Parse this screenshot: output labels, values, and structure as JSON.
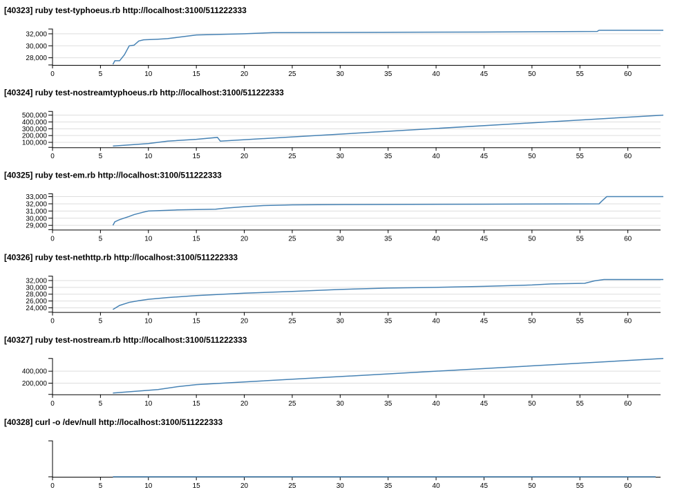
{
  "chart_data": [
    {
      "type": "line",
      "title": "[40323] ruby test-typhoeus.rb http://localhost:3100/511222333",
      "x": [
        6.3,
        6.5,
        7,
        7.5,
        8,
        8.5,
        9,
        9.5,
        11,
        12,
        13,
        14,
        15,
        20,
        23,
        45,
        56.8,
        57,
        63.7
      ],
      "series": [
        {
          "color": "#4682b4",
          "values": [
            26900,
            27500,
            27500,
            28500,
            30000,
            30100,
            30800,
            31000,
            31100,
            31200,
            31400,
            31600,
            31800,
            32000,
            32200,
            32300,
            32400,
            32600,
            32600
          ]
        }
      ],
      "xlim": [
        0,
        63.7
      ],
      "xticks": [
        0,
        5,
        10,
        15,
        20,
        25,
        30,
        35,
        40,
        45,
        50,
        55,
        60
      ],
      "ylim": [
        26800,
        32800
      ],
      "yticks": [
        {
          "value": 28000,
          "label": "28,000"
        },
        {
          "value": 30000,
          "label": "30,000"
        },
        {
          "value": 32000,
          "label": "32,000"
        }
      ],
      "grid": true
    },
    {
      "type": "line",
      "title": "[40324] ruby test-nostreamtyphoeus.rb http://localhost:3100/511222333",
      "x": [
        6.3,
        10,
        12,
        15,
        17.2,
        17.5,
        63.7
      ],
      "series": [
        {
          "color": "#4682b4",
          "values": [
            45000,
            82000,
            118000,
            145000,
            173000,
            118000,
            500000
          ]
        }
      ],
      "xlim": [
        0,
        63.7
      ],
      "xticks": [
        0,
        5,
        10,
        15,
        20,
        25,
        30,
        35,
        40,
        45,
        50,
        55,
        60
      ],
      "ylim": [
        27000,
        555000
      ],
      "yticks": [
        {
          "value": 100000,
          "label": "100,000"
        },
        {
          "value": 200000,
          "label": "200,000"
        },
        {
          "value": 300000,
          "label": "300,000"
        },
        {
          "value": 400000,
          "label": "400,000"
        },
        {
          "value": 500000,
          "label": "500,000"
        }
      ],
      "grid": true
    },
    {
      "type": "line",
      "title": "[40325] ruby test-em.rb http://localhost:3100/511222333",
      "x": [
        6.3,
        6.5,
        7,
        8,
        8.5,
        9.5,
        10,
        13,
        17,
        18,
        20,
        22,
        25,
        30.5,
        45,
        57,
        57.3,
        57.8,
        63.7
      ],
      "series": [
        {
          "color": "#4682b4",
          "values": [
            29000,
            29500,
            29800,
            30250,
            30500,
            30850,
            31000,
            31150,
            31250,
            31400,
            31600,
            31750,
            31850,
            31900,
            31950,
            32000,
            32400,
            33000,
            33000
          ]
        }
      ],
      "xlim": [
        0,
        63.7
      ],
      "xticks": [
        0,
        5,
        10,
        15,
        20,
        25,
        30,
        35,
        40,
        45,
        50,
        55,
        60
      ],
      "ylim": [
        28400,
        33400
      ],
      "yticks": [
        {
          "value": 29000,
          "label": "29,000"
        },
        {
          "value": 30000,
          "label": "30,000"
        },
        {
          "value": 31000,
          "label": "31,000"
        },
        {
          "value": 32000,
          "label": "32,000"
        },
        {
          "value": 33000,
          "label": "33,000"
        }
      ],
      "grid": true
    },
    {
      "type": "line",
      "title": "[40326] ruby test-nethttp.rb http://localhost:3100/511222333",
      "x": [
        6.3,
        7,
        8,
        9,
        10,
        12,
        15,
        20,
        25,
        30,
        35,
        40,
        45,
        50,
        52,
        55.5,
        56.5,
        57.5,
        63.7
      ],
      "series": [
        {
          "color": "#4682b4",
          "values": [
            23500,
            24700,
            25600,
            26100,
            26500,
            27000,
            27600,
            28300,
            28800,
            29400,
            29800,
            30000,
            30300,
            30700,
            31000,
            31200,
            31900,
            32300,
            32300
          ]
        }
      ],
      "xlim": [
        0,
        63.7
      ],
      "xticks": [
        0,
        5,
        10,
        15,
        20,
        25,
        30,
        35,
        40,
        45,
        50,
        55,
        60
      ],
      "ylim": [
        22750,
        33300
      ],
      "yticks": [
        {
          "value": 24000,
          "label": "24,000"
        },
        {
          "value": 26000,
          "label": "26,000"
        },
        {
          "value": 28000,
          "label": "28,000"
        },
        {
          "value": 30000,
          "label": "30,000"
        },
        {
          "value": 32000,
          "label": "32,000"
        }
      ],
      "grid": true
    },
    {
      "type": "line",
      "title": "[40327] ruby test-nostream.rb http://localhost:3100/511222333",
      "x": [
        6.3,
        11,
        13,
        15,
        63.7
      ],
      "series": [
        {
          "color": "#4682b4",
          "values": [
            35000,
            94000,
            141000,
            176000,
            612000
          ]
        }
      ],
      "xlim": [
        0,
        63.7
      ],
      "xticks": [
        0,
        5,
        10,
        15,
        20,
        25,
        30,
        35,
        40,
        45,
        50,
        55,
        60
      ],
      "ylim": [
        12000,
        612000
      ],
      "yticks": [
        {
          "value": 200000,
          "label": "200,000"
        },
        {
          "value": 400000,
          "label": "400,000"
        }
      ],
      "grid": true
    },
    {
      "type": "line",
      "title": "[40328] curl -o /dev/null http://localhost:3100/511222333",
      "x": [
        6.3,
        62.9
      ],
      "series": [
        {
          "color": "#4682b4",
          "values": [
            0,
            0
          ]
        }
      ],
      "xlim": [
        0,
        63.7
      ],
      "xticks": [
        0,
        5,
        10,
        15,
        20,
        25,
        30,
        35,
        40,
        45,
        50,
        55,
        60
      ],
      "ylim": [
        0,
        1
      ],
      "yticks": [],
      "grid": true
    }
  ]
}
